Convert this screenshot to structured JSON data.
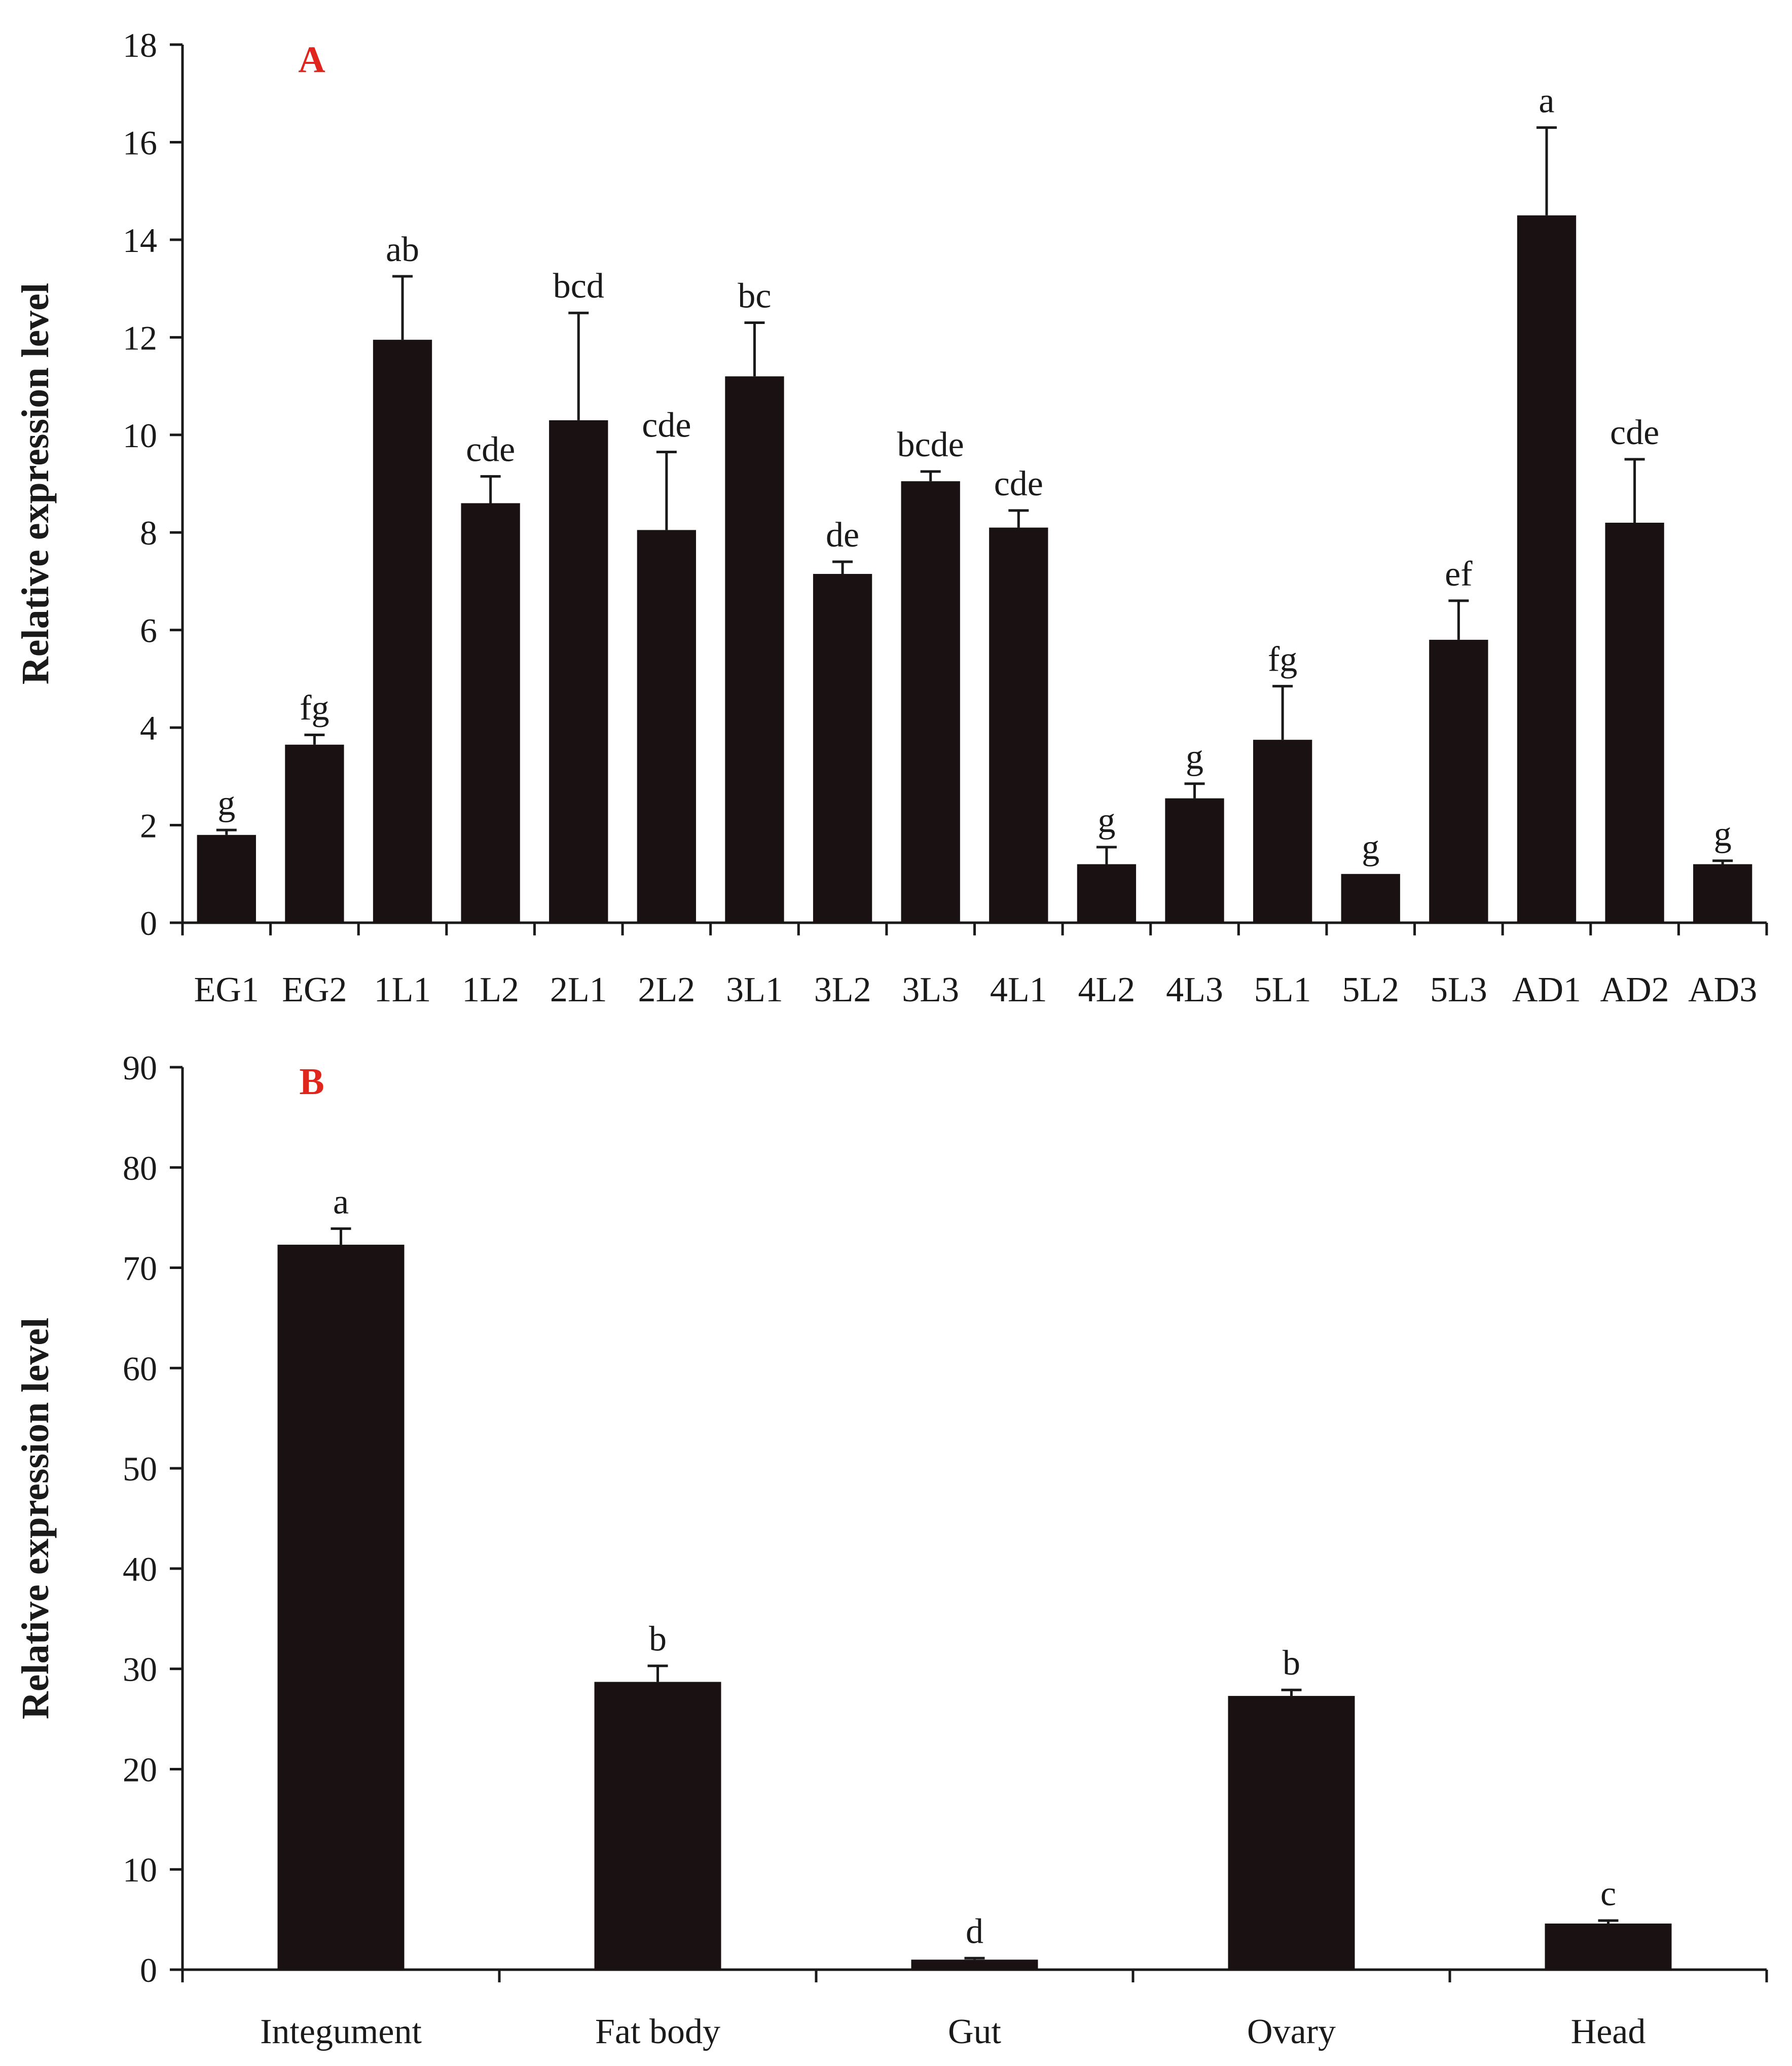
{
  "chart_data": [
    {
      "type": "bar",
      "panel_label": "A",
      "ylabel": "Relative expression level",
      "xlabel": "",
      "ylim": [
        0,
        18
      ],
      "yticks": [
        0,
        2,
        4,
        6,
        8,
        10,
        12,
        14,
        16,
        18
      ],
      "categories": [
        "EG1",
        "EG2",
        "1L1",
        "1L2",
        "2L1",
        "2L2",
        "3L1",
        "3L2",
        "3L3",
        "4L1",
        "4L2",
        "4L3",
        "5L1",
        "5L2",
        "5L3",
        "AD1",
        "AD2",
        "AD3"
      ],
      "values": [
        1.8,
        3.65,
        11.95,
        8.6,
        10.3,
        8.05,
        11.2,
        7.15,
        9.05,
        8.1,
        1.2,
        2.55,
        3.75,
        1.0,
        5.8,
        14.5,
        8.2,
        1.2
      ],
      "errors": [
        0.1,
        0.2,
        1.3,
        0.55,
        2.2,
        1.6,
        1.1,
        0.25,
        0.2,
        0.35,
        0.35,
        0.3,
        1.1,
        0.0,
        0.8,
        1.8,
        1.3,
        0.07
      ],
      "significance": [
        "g",
        "fg",
        "ab",
        "cde",
        "bcd",
        "cde",
        "bc",
        "de",
        "bcde",
        "cde",
        "g",
        "g",
        "fg",
        "g",
        "ef",
        "a",
        "cde",
        "g"
      ],
      "panel_label_color": "#e0251d",
      "bar_color": "#1a1212"
    },
    {
      "type": "bar",
      "panel_label": "B",
      "ylabel": "Relative expression level",
      "xlabel": "",
      "ylim": [
        0,
        90
      ],
      "yticks": [
        0,
        10,
        20,
        30,
        40,
        50,
        60,
        70,
        80,
        90
      ],
      "categories": [
        "Integument",
        "Fat body",
        "Gut",
        "Ovary",
        "Head"
      ],
      "values": [
        72.3,
        28.7,
        1.0,
        27.3,
        4.6
      ],
      "errors": [
        1.6,
        1.6,
        0.15,
        0.6,
        0.3
      ],
      "significance": [
        "a",
        "b",
        "d",
        "b",
        "c"
      ],
      "panel_label_color": "#e0251d",
      "bar_color": "#1a1212"
    }
  ]
}
